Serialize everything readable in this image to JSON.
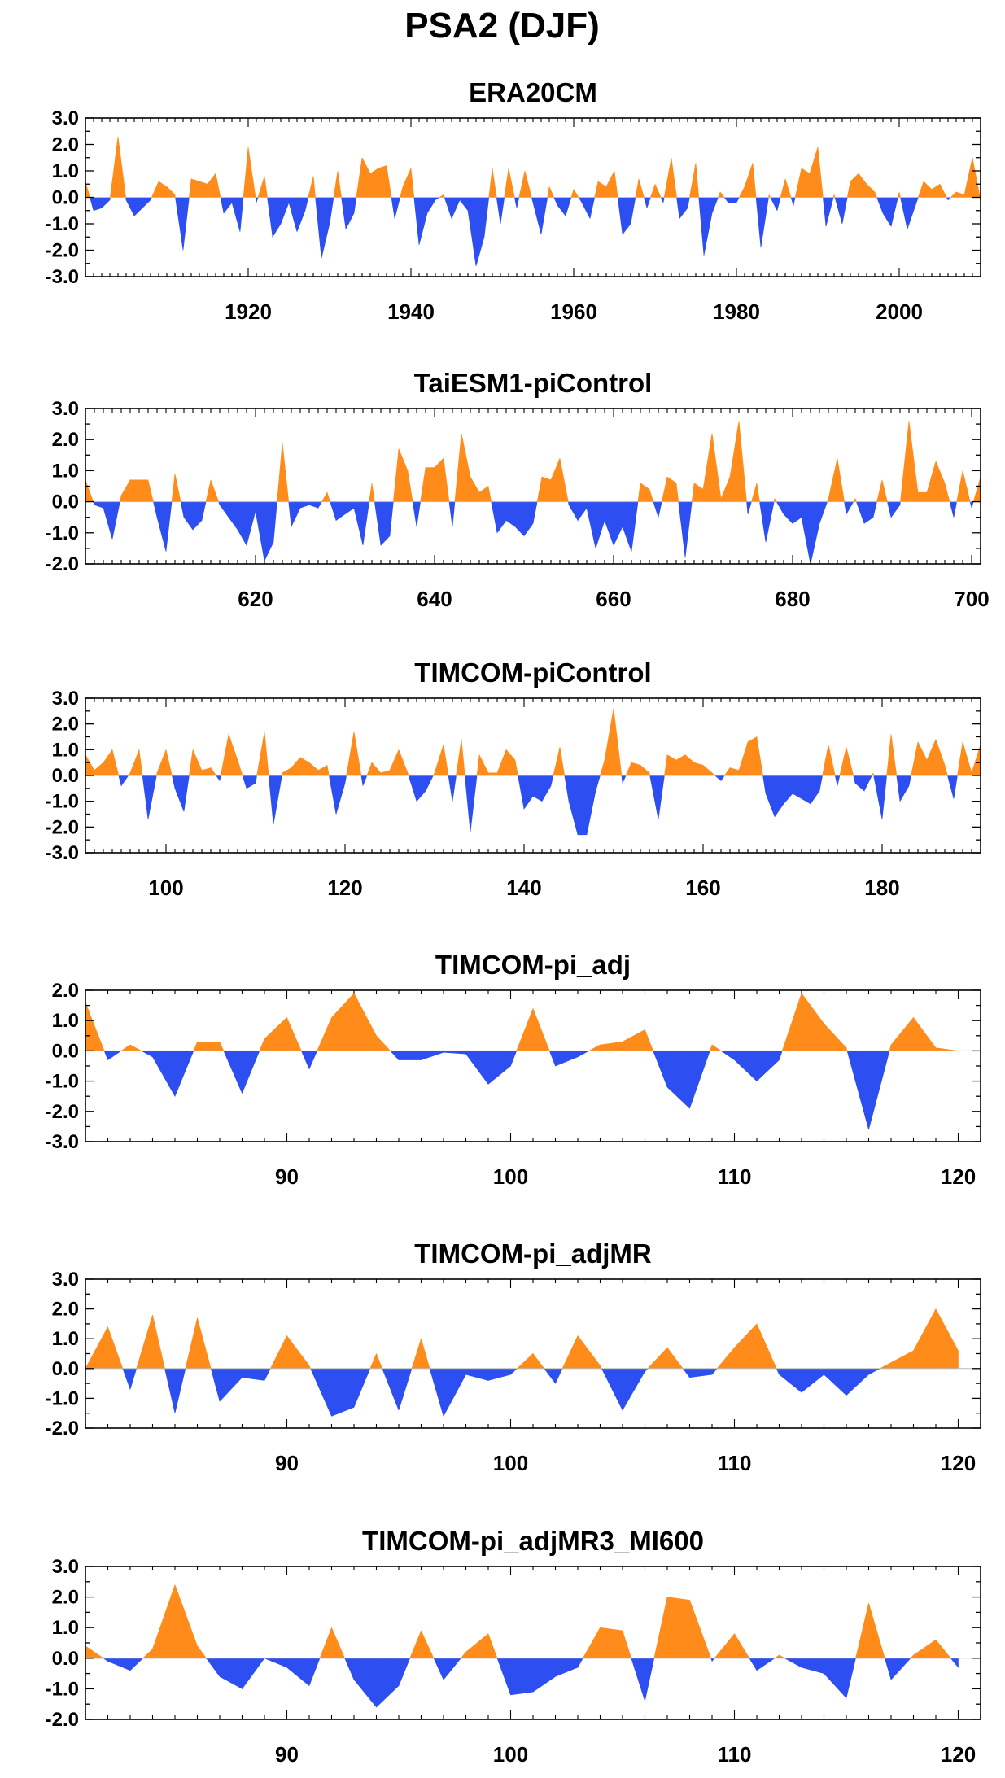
{
  "title": "PSA2 (DJF)",
  "colors": {
    "positive": "#ff8c1a",
    "negative": "#2d4ef0"
  },
  "chart_data": [
    {
      "type": "area",
      "title": "ERA20CM",
      "xlim": [
        1900,
        2010
      ],
      "ylim": [
        -3.0,
        3.0
      ],
      "yticks": [
        "3.0",
        "2.0",
        "1.0",
        "0.0",
        "-1.0",
        "-2.0",
        "-3.0"
      ],
      "xticks": [
        1920,
        1940,
        1960,
        1980,
        2000
      ],
      "x": [
        1900,
        1901,
        1902,
        1903,
        1904,
        1905,
        1906,
        1907,
        1908,
        1909,
        1910,
        1911,
        1912,
        1913,
        1914,
        1915,
        1916,
        1917,
        1918,
        1919,
        1920,
        1921,
        1922,
        1923,
        1924,
        1925,
        1926,
        1927,
        1928,
        1929,
        1930,
        1931,
        1932,
        1933,
        1934,
        1935,
        1936,
        1937,
        1938,
        1939,
        1940,
        1941,
        1942,
        1943,
        1944,
        1945,
        1946,
        1947,
        1948,
        1949,
        1950,
        1951,
        1952,
        1953,
        1954,
        1955,
        1956,
        1957,
        1958,
        1959,
        1960,
        1961,
        1962,
        1963,
        1964,
        1965,
        1966,
        1967,
        1968,
        1969,
        1970,
        1971,
        1972,
        1973,
        1974,
        1975,
        1976,
        1977,
        1978,
        1979,
        1980,
        1981,
        1982,
        1983,
        1984,
        1985,
        1986,
        1987,
        1988,
        1989,
        1990,
        1991,
        1992,
        1993,
        1994,
        1995,
        1996,
        1997,
        1998,
        1999,
        2000,
        2001,
        2002,
        2003,
        2004,
        2005,
        2006,
        2007,
        2008,
        2009,
        2010
      ],
      "values": [
        0.6,
        -0.5,
        -0.4,
        -0.1,
        2.3,
        -0.1,
        -0.7,
        -0.4,
        -0.1,
        0.6,
        0.4,
        0.1,
        -2.0,
        0.7,
        0.6,
        0.5,
        0.9,
        -0.6,
        -0.2,
        -1.3,
        1.9,
        -0.2,
        0.8,
        -1.5,
        -1.0,
        -0.2,
        -1.3,
        -0.5,
        0.8,
        -2.3,
        -1.0,
        1.0,
        -1.2,
        -0.6,
        1.5,
        0.9,
        1.1,
        1.2,
        -0.8,
        0.4,
        1.1,
        -1.8,
        -0.6,
        -0.1,
        0.1,
        -0.8,
        -0.1,
        -0.5,
        -2.6,
        -1.5,
        1.1,
        -1.0,
        1.1,
        -0.4,
        1.0,
        -0.2,
        -1.4,
        0.4,
        -0.3,
        -0.7,
        0.3,
        -0.2,
        -0.8,
        0.6,
        0.4,
        1.0,
        -1.4,
        -1.0,
        0.7,
        -0.4,
        0.5,
        -0.2,
        1.5,
        -0.8,
        -0.4,
        1.3,
        -2.2,
        -0.6,
        0.2,
        -0.2,
        -0.2,
        0.4,
        1.3,
        -1.9,
        0.1,
        -0.5,
        0.7,
        -0.3,
        1.1,
        0.9,
        1.9,
        -1.1,
        0.1,
        -1.0,
        0.6,
        0.9,
        0.5,
        0.2,
        -0.6,
        -1.1,
        0.2,
        -1.2,
        -0.3,
        0.6,
        0.3,
        0.5,
        -0.1,
        0.2,
        0.1,
        1.5,
        -0.1
      ]
    },
    {
      "type": "area",
      "title": "TaiESM1-piControl",
      "xlim": [
        601,
        701
      ],
      "ylim": [
        -2.0,
        3.0
      ],
      "yticks": [
        "3.0",
        "2.0",
        "1.0",
        "0.0",
        "-1.0",
        "-2.0"
      ],
      "xticks": [
        620,
        640,
        660,
        680,
        700
      ],
      "x": [
        601,
        602,
        603,
        604,
        605,
        606,
        607,
        608,
        609,
        610,
        611,
        612,
        613,
        614,
        615,
        616,
        617,
        618,
        619,
        620,
        621,
        622,
        623,
        624,
        625,
        626,
        627,
        628,
        629,
        630,
        631,
        632,
        633,
        634,
        635,
        636,
        637,
        638,
        639,
        640,
        641,
        642,
        643,
        644,
        645,
        646,
        647,
        648,
        649,
        650,
        651,
        652,
        653,
        654,
        655,
        656,
        657,
        658,
        659,
        660,
        661,
        662,
        663,
        664,
        665,
        666,
        667,
        668,
        669,
        670,
        671,
        672,
        673,
        674,
        675,
        676,
        677,
        678,
        679,
        680,
        681,
        682,
        683,
        684,
        685,
        686,
        687,
        688,
        689,
        690,
        691,
        692,
        693,
        694,
        695,
        696,
        697,
        698,
        699,
        700,
        701
      ],
      "values": [
        0.7,
        -0.1,
        -0.2,
        -1.2,
        0.2,
        0.7,
        0.7,
        0.7,
        -0.5,
        -1.6,
        0.9,
        -0.5,
        -0.9,
        -0.6,
        0.7,
        -0.1,
        -0.5,
        -0.9,
        -1.4,
        -0.3,
        -1.9,
        -1.3,
        1.9,
        -0.8,
        -0.2,
        -0.1,
        -0.2,
        0.3,
        -0.6,
        -0.4,
        -0.2,
        -1.4,
        0.6,
        -1.4,
        -1.1,
        1.7,
        1.0,
        -0.8,
        1.1,
        1.1,
        1.4,
        -0.8,
        2.2,
        0.8,
        0.3,
        0.5,
        -1.0,
        -0.6,
        -0.8,
        -1.1,
        -0.7,
        0.8,
        0.7,
        1.4,
        -0.1,
        -0.6,
        -0.2,
        -1.5,
        -0.6,
        -1.4,
        -0.8,
        -1.6,
        0.6,
        0.4,
        -0.5,
        0.8,
        0.6,
        -1.8,
        0.6,
        0.4,
        2.2,
        0.1,
        0.8,
        2.6,
        -0.4,
        0.6,
        -1.3,
        0.1,
        -0.4,
        -0.7,
        -0.5,
        -2.0,
        -0.7,
        0.1,
        1.4,
        -0.4,
        0.1,
        -0.7,
        -0.5,
        0.7,
        -0.5,
        -0.1,
        2.6,
        0.3,
        0.3,
        1.3,
        0.6,
        -0.5,
        1.0,
        -0.2,
        0.8
      ]
    },
    {
      "type": "area",
      "title": "TIMCOM-piControl",
      "xlim": [
        91,
        191
      ],
      "ylim": [
        -3.0,
        3.0
      ],
      "yticks": [
        "3.0",
        "2.0",
        "1.0",
        "0.0",
        "-1.0",
        "-2.0",
        "-3.0"
      ],
      "xticks": [
        100,
        120,
        140,
        160,
        180
      ],
      "x": [
        91,
        92,
        93,
        94,
        95,
        96,
        97,
        98,
        99,
        100,
        101,
        102,
        103,
        104,
        105,
        106,
        107,
        108,
        109,
        110,
        111,
        112,
        113,
        114,
        115,
        116,
        117,
        118,
        119,
        120,
        121,
        122,
        123,
        124,
        125,
        126,
        127,
        128,
        129,
        130,
        131,
        132,
        133,
        134,
        135,
        136,
        137,
        138,
        139,
        140,
        141,
        142,
        143,
        144,
        145,
        146,
        147,
        148,
        149,
        150,
        151,
        152,
        153,
        154,
        155,
        156,
        157,
        158,
        159,
        160,
        161,
        162,
        163,
        164,
        165,
        166,
        167,
        168,
        169,
        170,
        171,
        172,
        173,
        174,
        175,
        176,
        177,
        178,
        179,
        180,
        181,
        182,
        183,
        184,
        185,
        186,
        187,
        188,
        189,
        190,
        191
      ],
      "values": [
        0.8,
        0.2,
        0.5,
        1.0,
        -0.4,
        0.1,
        1.0,
        -1.7,
        0.1,
        1.0,
        -0.5,
        -1.4,
        1.0,
        0.2,
        0.3,
        -0.2,
        1.6,
        0.6,
        -0.5,
        -0.3,
        1.7,
        -1.9,
        0.1,
        0.3,
        0.7,
        0.5,
        0.2,
        0.4,
        -1.5,
        -0.3,
        1.7,
        -0.4,
        0.5,
        0.1,
        0.2,
        1.0,
        0.1,
        -1.0,
        -0.6,
        0.1,
        1.2,
        -1.0,
        1.4,
        -2.2,
        0.8,
        0.1,
        0.1,
        1.0,
        0.6,
        -1.3,
        -0.8,
        -1.0,
        -0.4,
        1.1,
        -1.0,
        -2.3,
        -2.3,
        -0.6,
        0.6,
        2.6,
        -0.3,
        0.5,
        0.4,
        0.1,
        -1.7,
        0.8,
        0.6,
        0.8,
        0.5,
        0.4,
        0.1,
        -0.2,
        0.3,
        0.2,
        1.3,
        1.5,
        -0.7,
        -1.6,
        -1.1,
        -0.7,
        -0.9,
        -1.1,
        -0.6,
        1.2,
        -0.4,
        1.1,
        -0.3,
        -0.6,
        0.1,
        -1.7,
        1.6,
        -1.0,
        -0.4,
        1.3,
        0.6,
        1.4,
        0.4,
        -0.9,
        1.3,
        0.1,
        1.2
      ]
    },
    {
      "type": "area",
      "title": "TIMCOM-pi_adj",
      "xlim": [
        81,
        121
      ],
      "ylim": [
        -3.0,
        2.0
      ],
      "yticks": [
        "2.0",
        "1.0",
        "0.0",
        "-1.0",
        "-2.0",
        "-3.0"
      ],
      "xticks": [
        90,
        100,
        110,
        120
      ],
      "x": [
        81,
        82,
        83,
        84,
        85,
        86,
        87,
        88,
        89,
        90,
        91,
        92,
        93,
        94,
        95,
        96,
        97,
        98,
        99,
        100,
        101,
        102,
        103,
        104,
        105,
        106,
        107,
        108,
        109,
        110,
        111,
        112,
        113,
        114,
        115,
        116,
        117,
        118,
        119,
        120
      ],
      "values": [
        1.6,
        -0.3,
        0.2,
        -0.2,
        -1.5,
        0.3,
        0.3,
        -1.4,
        0.4,
        1.1,
        -0.6,
        1.1,
        1.9,
        0.5,
        -0.3,
        -0.3,
        -0.05,
        -0.1,
        -1.1,
        -0.5,
        1.4,
        -0.5,
        -0.2,
        0.2,
        0.3,
        0.7,
        -1.2,
        -1.9,
        0.2,
        -0.3,
        -1.0,
        -0.3,
        1.9,
        0.9,
        0.1,
        -2.6,
        0.2,
        1.1,
        0.1,
        0.0
      ]
    },
    {
      "type": "area",
      "title": "TIMCOM-pi_adjMR",
      "xlim": [
        81,
        121
      ],
      "ylim": [
        -2.0,
        3.0
      ],
      "yticks": [
        "3.0",
        "2.0",
        "1.0",
        "0.0",
        "-1.0",
        "-2.0"
      ],
      "xticks": [
        90,
        100,
        110,
        120
      ],
      "x": [
        81,
        82,
        83,
        84,
        85,
        86,
        87,
        88,
        89,
        90,
        91,
        92,
        93,
        94,
        95,
        96,
        97,
        98,
        99,
        100,
        101,
        102,
        103,
        104,
        105,
        106,
        107,
        108,
        109,
        110,
        111,
        112,
        113,
        114,
        115,
        116,
        117,
        118,
        119,
        120
      ],
      "values": [
        0.0,
        1.4,
        -0.7,
        1.8,
        -1.5,
        1.7,
        -1.1,
        -0.3,
        -0.4,
        1.1,
        0.1,
        -1.6,
        -1.3,
        0.5,
        -1.4,
        1.0,
        -1.6,
        -0.2,
        -0.4,
        -0.2,
        0.5,
        -0.5,
        1.1,
        0.1,
        -1.4,
        -0.1,
        0.7,
        -0.3,
        -0.2,
        0.7,
        1.5,
        -0.2,
        -0.8,
        -0.2,
        -0.9,
        -0.2,
        0.2,
        0.6,
        2.0,
        0.6
      ]
    },
    {
      "type": "area",
      "title": "TIMCOM-pi_adjMR3_MI600",
      "xlim": [
        81,
        121
      ],
      "ylim": [
        -2.0,
        3.0
      ],
      "yticks": [
        "3.0",
        "2.0",
        "1.0",
        "0.0",
        "-1.0",
        "-2.0"
      ],
      "xticks": [
        90,
        100,
        110,
        120
      ],
      "x": [
        81,
        82,
        83,
        84,
        85,
        86,
        87,
        88,
        89,
        90,
        91,
        92,
        93,
        94,
        95,
        96,
        97,
        98,
        99,
        100,
        101,
        102,
        103,
        104,
        105,
        106,
        107,
        108,
        109,
        110,
        111,
        112,
        113,
        114,
        115,
        116,
        117,
        118,
        119,
        120
      ],
      "values": [
        0.4,
        -0.1,
        -0.4,
        0.3,
        2.4,
        0.4,
        -0.6,
        -1.0,
        0.0,
        -0.3,
        -0.9,
        1.0,
        -0.7,
        -1.6,
        -0.9,
        0.9,
        -0.7,
        0.2,
        0.8,
        -1.2,
        -1.1,
        -0.6,
        -0.3,
        1.0,
        0.9,
        -1.4,
        2.0,
        1.9,
        -0.1,
        0.8,
        -0.4,
        0.1,
        -0.3,
        -0.5,
        -1.3,
        1.8,
        -0.7,
        0.1,
        0.6,
        -0.3
      ]
    }
  ]
}
